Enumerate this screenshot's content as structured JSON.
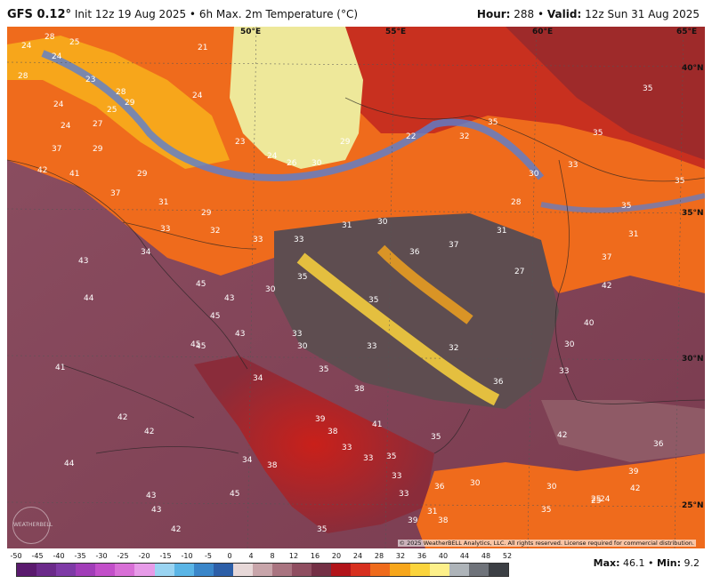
{
  "header": {
    "model": "GFS 0.12°",
    "init": "Init 12z 19 Aug 2025",
    "product": "6h Max. 2m Temperature (°C)",
    "hour_label": "Hour:",
    "hour_value": "288",
    "valid_label": "Valid:",
    "valid_value": "12z Sun 31 Aug 2025"
  },
  "map": {
    "longitude_labels": [
      "50°E",
      "55°E",
      "60°E",
      "65°E"
    ],
    "latitude_labels": [
      "40°N",
      "35°N",
      "30°N",
      "25°N"
    ],
    "temperature_labels": [
      "24",
      "28",
      "24",
      "25",
      "28",
      "23",
      "24",
      "28",
      "25",
      "27",
      "29",
      "24",
      "29",
      "21",
      "24",
      "23",
      "24",
      "26",
      "30",
      "29",
      "22",
      "32",
      "35",
      "35",
      "35",
      "37",
      "42",
      "41",
      "37",
      "29",
      "31",
      "33",
      "32",
      "29",
      "33",
      "33",
      "37",
      "30",
      "31",
      "28",
      "30",
      "33",
      "31",
      "35",
      "35",
      "43",
      "34",
      "45",
      "43",
      "36",
      "27",
      "31",
      "37",
      "35",
      "35",
      "44",
      "45",
      "30",
      "33",
      "42",
      "43",
      "45",
      "30",
      "40",
      "45",
      "41",
      "33",
      "32",
      "33",
      "35",
      "30",
      "36",
      "38",
      "42",
      "34",
      "39",
      "42",
      "41",
      "38",
      "35",
      "33",
      "33",
      "35",
      "30",
      "44",
      "34",
      "38",
      "42",
      "33",
      "42",
      "45",
      "36",
      "39",
      "43",
      "36",
      "33",
      "31",
      "38",
      "30",
      "35",
      "43",
      "25",
      "42",
      "35",
      "39",
      "25",
      "24"
    ],
    "copyright": "© 2025 WeatherBELL Analytics, LLC. All rights reserved. License required for commercial distribution.",
    "logo_text": "WEATHERBELL"
  },
  "legend": {
    "ticks": [
      "-50",
      "-45",
      "-40",
      "-35",
      "-30",
      "-25",
      "-20",
      "-15",
      "-10",
      "-5",
      "0",
      "4",
      "8",
      "12",
      "16",
      "20",
      "24",
      "28",
      "32",
      "36",
      "40",
      "44",
      "48",
      "52"
    ],
    "colors": [
      "#5a1a6e",
      "#6b2a8a",
      "#7e3aa6",
      "#a13db8",
      "#c24fc9",
      "#d86fd6",
      "#e79be8",
      "#9ad4f2",
      "#5ab5e6",
      "#3a86c9",
      "#2d5fa8",
      "#e7d8d8",
      "#c8a5aa",
      "#a97480",
      "#8f4e60",
      "#743045",
      "#b2141a",
      "#d7301f",
      "#ef6b1c",
      "#f7a61b",
      "#fbd43c",
      "#fdf08a",
      "#aeb4b9",
      "#6f737a",
      "#3c3f44"
    ],
    "max_label": "Max:",
    "max_value": "46.1",
    "min_label": "Min:",
    "min_value": "9.2"
  }
}
